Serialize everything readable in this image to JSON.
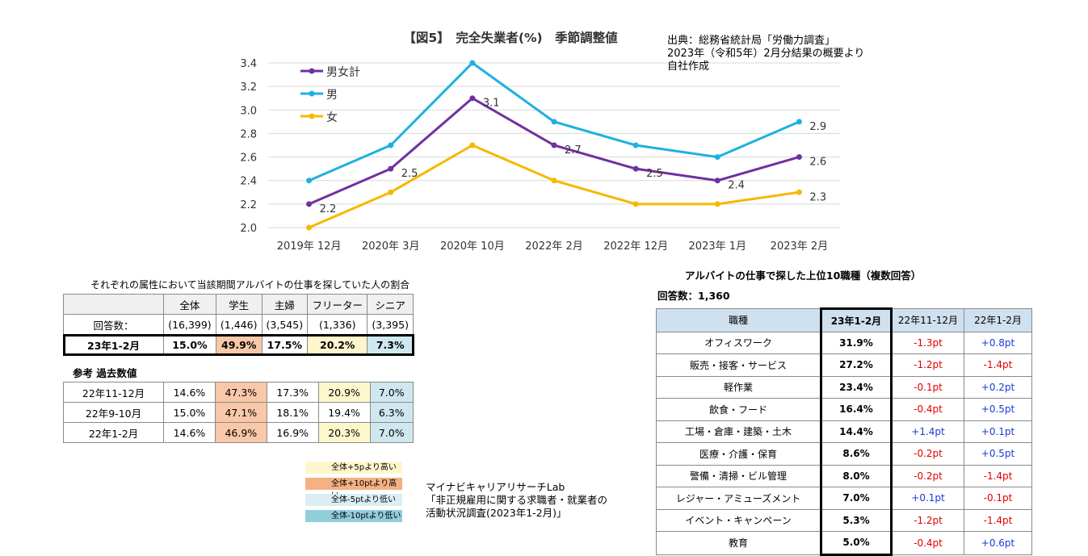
{
  "chart_data": {
    "type": "line",
    "title": "【図5】　完全失業者(%)　季節調整値",
    "categories": [
      "2019年 12月",
      "2020年 3月",
      "2020年 10月",
      "2022年 2月",
      "2022年 12月",
      "2023年 1月",
      "2023年 2月"
    ],
    "ylim": [
      2.0,
      3.4
    ],
    "yticks": [
      "2.0",
      "2.2",
      "2.4",
      "2.6",
      "2.8",
      "3.0",
      "3.2",
      "3.4"
    ],
    "grid": true,
    "legend_position": "top-left",
    "series": [
      {
        "name": "男女計",
        "color": "#7030a0",
        "values": [
          2.2,
          2.5,
          3.1,
          2.7,
          2.5,
          2.4,
          2.6
        ],
        "labels": [
          "2.2",
          "2.5",
          "3.1",
          "2.7",
          "2.5",
          "2.4",
          "2.6"
        ]
      },
      {
        "name": "男",
        "color": "#1fb0e0",
        "values": [
          2.4,
          2.7,
          3.4,
          2.9,
          2.7,
          2.6,
          2.9
        ],
        "labels": [
          "",
          "",
          "",
          "",
          "",
          "",
          "2.9"
        ]
      },
      {
        "name": "女",
        "color": "#f5b800",
        "values": [
          2.0,
          2.3,
          2.7,
          2.4,
          2.2,
          2.2,
          2.3
        ],
        "labels": [
          "",
          "",
          "",
          "",
          "",
          "",
          "2.3"
        ]
      }
    ]
  },
  "source": {
    "line1": "出典：総務省統計局「労働力調査」",
    "line2": "2023年（令和5年）2月分結果の概要より",
    "line3": "自社作成"
  },
  "attr_table": {
    "caption": "それぞれの属性において当該期間アルバイトの仕事を探していた人の割合",
    "headers": [
      "全体",
      "学生",
      "主婦",
      "フリーター",
      "シニア"
    ],
    "count_label": "回答数：",
    "counts": [
      "(16,399)",
      "(1,446)",
      "(3,545)",
      "(1,336)",
      "(3,395)"
    ],
    "current": {
      "label": "23年1-2月",
      "values": [
        "15.0%",
        "49.9%",
        "17.5%",
        "20.2%",
        "7.3%"
      ]
    }
  },
  "past_table": {
    "caption": "参考 過去数値",
    "rows": [
      {
        "label": "22年11-12月",
        "values": [
          "14.6%",
          "47.3%",
          "17.3%",
          "20.9%",
          "7.0%"
        ]
      },
      {
        "label": "22年9-10月",
        "values": [
          "15.0%",
          "47.1%",
          "18.1%",
          "19.4%",
          "6.3%"
        ]
      },
      {
        "label": "22年1-2月",
        "values": [
          "14.6%",
          "46.9%",
          "16.9%",
          "20.3%",
          "7.0%"
        ]
      }
    ]
  },
  "color_legend": [
    {
      "label": "全体+5pより高い",
      "color": "#fff7cc"
    },
    {
      "label": "全体+10ptより高い",
      "color": "#f4b183"
    },
    {
      "label": "全体-5ptより低い",
      "color": "#daeef3"
    },
    {
      "label": "全体-10ptより低い",
      "color": "#92cddc"
    }
  ],
  "lab_source": {
    "line1": "マイナビキャリアリサーチLab",
    "line2": "「非正規雇用に関する求職者・就業者の",
    "line3": "活動状況調査(2023年1-2月)」"
  },
  "jobs_table": {
    "title": "アルバイトの仕事で探した上位10職種（複数回答）",
    "count": "回答数：1,360",
    "headers": [
      "職種",
      "23年1-2月",
      "22年11-12月",
      "22年1-2月"
    ],
    "rows": [
      {
        "name": "オフィスワーク",
        "cur": "31.9%",
        "d1": "-1.3pt",
        "d2": "+0.8pt"
      },
      {
        "name": "販売・接客・サービス",
        "cur": "27.2%",
        "d1": "-1.2pt",
        "d2": "-1.4pt"
      },
      {
        "name": "軽作業",
        "cur": "23.4%",
        "d1": "-0.1pt",
        "d2": "+0.2pt"
      },
      {
        "name": "飲食・フード",
        "cur": "16.4%",
        "d1": "-0.4pt",
        "d2": "+0.5pt"
      },
      {
        "name": "工場・倉庫・建築・土木",
        "cur": "14.4%",
        "d1": "+1.4pt",
        "d2": "+0.1pt"
      },
      {
        "name": "医療・介護・保育",
        "cur": "8.6%",
        "d1": "-0.2pt",
        "d2": "+0.5pt"
      },
      {
        "name": "警備・清掃・ビル管理",
        "cur": "8.0%",
        "d1": "-0.2pt",
        "d2": "-1.4pt"
      },
      {
        "name": "レジャー・アミューズメント",
        "cur": "7.0%",
        "d1": "+0.1pt",
        "d2": "-0.1pt"
      },
      {
        "name": "イベント・キャンペーン",
        "cur": "5.3%",
        "d1": "-1.2pt",
        "d2": "-1.4pt"
      },
      {
        "name": "教育",
        "cur": "5.0%",
        "d1": "-0.4pt",
        "d2": "+0.6pt"
      }
    ]
  }
}
